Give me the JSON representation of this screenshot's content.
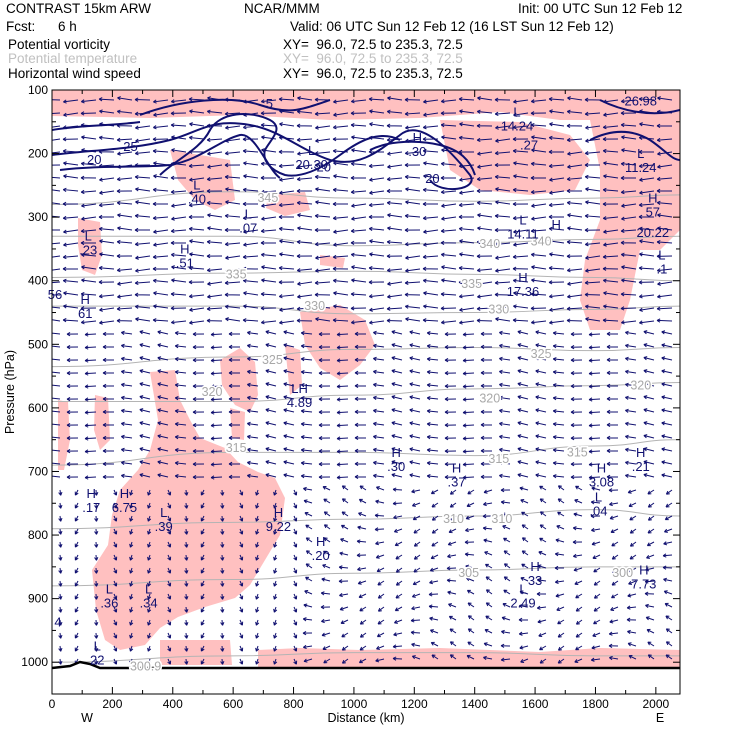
{
  "header": {
    "model": "CONTRAST 15km ARW",
    "org": "NCAR/MMM",
    "init": "Init: 00 UTC Sun 12 Feb 12",
    "fcst_label": "Fcst:",
    "fcst_value": "6 h",
    "valid": "Valid: 06 UTC Sun 12 Feb 12 (16 LST Sun 12 Feb 12)",
    "fields": [
      {
        "name": "Potential vorticity",
        "xy": "XY=  96.0, 72.5 to 235.3, 72.5",
        "muted": false
      },
      {
        "name": "Potential temperature",
        "xy": "XY=  96.0, 72.5 to 235.3, 72.5",
        "muted": true
      },
      {
        "name": "Horizontal wind speed",
        "xy": "XY=  96.0, 72.5 to 235.3, 72.5",
        "muted": false
      }
    ]
  },
  "colors": {
    "shading": "#ffc0c0",
    "pv_contour": "#101070",
    "theta_contour": "#b4b4b4",
    "wind_vector": "#101070",
    "terrain": "#000000"
  },
  "chart_data": {
    "type": "cross-section",
    "xlabel": "Distance (km)",
    "ylabel": "Pressure (hPa)",
    "xlim": [
      0,
      2080
    ],
    "ylim": [
      1050,
      100
    ],
    "y_scale": "linear, inverted",
    "x_ticks": [
      "0",
      "200",
      "400",
      "600",
      "800",
      "1000",
      "1200",
      "1400",
      "1600",
      "1800",
      "2000"
    ],
    "y_ticks": [
      "100",
      "200",
      "300",
      "400",
      "500",
      "600",
      "700",
      "800",
      "900",
      "1000"
    ],
    "end_labels": {
      "left": "W",
      "right": "E"
    },
    "theta_contours": [
      {
        "label": "345",
        "pressure": [
          280,
          260,
          270,
          275,
          270,
          265
        ],
        "x": [
          0,
          600,
          1000,
          1400,
          1800,
          2080
        ]
      },
      {
        "label": "340",
        "pressure": [
          330,
          330,
          345,
          340,
          335,
          330
        ],
        "x": [
          0,
          600,
          1000,
          1400,
          1800,
          2080
        ]
      },
      {
        "label": "335",
        "pressure": [
          395,
          388,
          385,
          390,
          395,
          400
        ],
        "x": [
          0,
          600,
          1000,
          1400,
          1800,
          2080
        ]
      },
      {
        "label": "330",
        "pressure": [
          440,
          440,
          452,
          450,
          445,
          440
        ],
        "x": [
          0,
          600,
          1000,
          1400,
          1800,
          2080
        ]
      },
      {
        "label": "325",
        "pressure": [
          535,
          520,
          508,
          505,
          510,
          505
        ],
        "x": [
          0,
          600,
          1000,
          1400,
          1800,
          2080
        ]
      },
      {
        "label": "320",
        "pressure": [
          590,
          590,
          580,
          570,
          565,
          560
        ],
        "x": [
          0,
          600,
          1000,
          1400,
          1800,
          2080
        ]
      },
      {
        "label": "315",
        "pressure": [
          690,
          670,
          670,
          675,
          660,
          650
        ],
        "x": [
          0,
          600,
          1000,
          1400,
          1800,
          2080
        ]
      },
      {
        "label": "310",
        "pressure": [
          790,
          780,
          775,
          770,
          760,
          770
        ],
        "x": [
          0,
          600,
          1000,
          1400,
          1800,
          2080
        ]
      },
      {
        "label": "305",
        "pressure": [
          880,
          870,
          860,
          855,
          850,
          850
        ],
        "x": [
          0,
          600,
          1000,
          1400,
          1800,
          2080
        ]
      },
      {
        "label": "300",
        "pressure": [
          1000,
          990,
          985,
          985,
          990,
          990
        ],
        "x": [
          0,
          600,
          1000,
          1400,
          1800,
          2080
        ]
      }
    ],
    "theta_labels": [
      {
        "text": "345",
        "x": 715,
        "p": 270
      },
      {
        "text": "340",
        "x": 1450,
        "p": 342
      },
      {
        "text": "340",
        "x": 1620,
        "p": 338
      },
      {
        "text": "335",
        "x": 610,
        "p": 390
      },
      {
        "text": "335",
        "x": 1390,
        "p": 405
      },
      {
        "text": "330",
        "x": 870,
        "p": 440
      },
      {
        "text": "330",
        "x": 1480,
        "p": 445
      },
      {
        "text": "325",
        "x": 730,
        "p": 525
      },
      {
        "text": "325",
        "x": 1620,
        "p": 515
      },
      {
        "text": "320",
        "x": 530,
        "p": 575
      },
      {
        "text": "320",
        "x": 1450,
        "p": 585
      },
      {
        "text": "320",
        "x": 1950,
        "p": 565
      },
      {
        "text": "315",
        "x": 610,
        "p": 663
      },
      {
        "text": "315",
        "x": 1480,
        "p": 680
      },
      {
        "text": "315",
        "x": 1740,
        "p": 670
      },
      {
        "text": "310",
        "x": 1330,
        "p": 775
      },
      {
        "text": "310",
        "x": 1490,
        "p": 775
      },
      {
        "text": "305",
        "x": 1380,
        "p": 860
      },
      {
        "text": "300",
        "x": 1890,
        "p": 860
      },
      {
        "text": "300.9",
        "x": 310,
        "p": 1007
      }
    ],
    "pv_labels": [
      {
        "text": "25",
        "x": 260,
        "p": 190
      },
      {
        "text": "20",
        "x": 140,
        "p": 210
      },
      {
        "text": "20",
        "x": 900,
        "p": 222
      },
      {
        "text": "20",
        "x": 1260,
        "p": 240
      },
      {
        "text": "5",
        "x": 720,
        "p": 122
      },
      {
        "text": "26.98",
        "x": 1950,
        "p": 118
      }
    ],
    "extrema": [
      {
        "mark": "L",
        "value": "14.24",
        "x": 1540,
        "p": 145
      },
      {
        "mark": "",
        "value": ".27",
        "x": 1580,
        "p": 175
      },
      {
        "mark": "H",
        "value": ".30",
        "x": 1210,
        "p": 185
      },
      {
        "mark": "L",
        "value": "20.30",
        "x": 860,
        "p": 205
      },
      {
        "mark": "L",
        "value": "11.24",
        "x": 1950,
        "p": 210
      },
      {
        "mark": "L",
        "value": ".40",
        "x": 480,
        "p": 260
      },
      {
        "mark": "H",
        "value": "57",
        "x": 1990,
        "p": 280
      },
      {
        "mark": "",
        "value": "20.22",
        "x": 1990,
        "p": 312
      },
      {
        "mark": "L",
        "value": ".07",
        "x": 650,
        "p": 305
      },
      {
        "mark": "L",
        "value": "14.11",
        "x": 1560,
        "p": 315
      },
      {
        "mark": "H",
        "value": "",
        "x": 1670,
        "p": 322
      },
      {
        "mark": "L",
        "value": ".23",
        "x": 120,
        "p": 340
      },
      {
        "mark": "H",
        "value": ".51",
        "x": 440,
        "p": 360
      },
      {
        "mark": "L",
        "value": ".1",
        "x": 2020,
        "p": 370
      },
      {
        "mark": "H",
        "value": "17.36",
        "x": 1560,
        "p": 405
      },
      {
        "mark": "",
        "value": "56",
        "x": 10,
        "p": 410
      },
      {
        "mark": "H",
        "value": "61",
        "x": 110,
        "p": 440
      },
      {
        "mark": "LH",
        "value": "4.89",
        "x": 820,
        "p": 580
      },
      {
        "mark": "H",
        "value": ".30",
        "x": 1140,
        "p": 680
      },
      {
        "mark": "H",
        "value": ".21",
        "x": 1950,
        "p": 680
      },
      {
        "mark": "H",
        "value": ".37",
        "x": 1340,
        "p": 705
      },
      {
        "mark": "H",
        "value": "3.08",
        "x": 1820,
        "p": 705
      },
      {
        "mark": "H",
        "value": ".17",
        "x": 130,
        "p": 745
      },
      {
        "mark": "H",
        "value": "6.75",
        "x": 240,
        "p": 745
      },
      {
        "mark": "L",
        "value": ".04",
        "x": 1810,
        "p": 750
      },
      {
        "mark": "L",
        "value": ".39",
        "x": 370,
        "p": 775
      },
      {
        "mark": "H",
        "value": "9.22",
        "x": 750,
        "p": 775
      },
      {
        "mark": "H",
        "value": ".20",
        "x": 890,
        "p": 820
      },
      {
        "mark": "H",
        "value": "33",
        "x": 1600,
        "p": 860
      },
      {
        "mark": "H",
        "value": "7.73",
        "x": 1960,
        "p": 865
      },
      {
        "mark": "L",
        "value": ".36",
        "x": 190,
        "p": 895
      },
      {
        "mark": "L",
        "value": ".34",
        "x": 320,
        "p": 895
      },
      {
        "mark": "L",
        "value": "2.49",
        "x": 1560,
        "p": 895
      },
      {
        "mark": "",
        "value": "4",
        "x": 20,
        "p": 925
      },
      {
        "mark": "L",
        "value": "22",
        "x": 150,
        "p": 985
      }
    ]
  }
}
